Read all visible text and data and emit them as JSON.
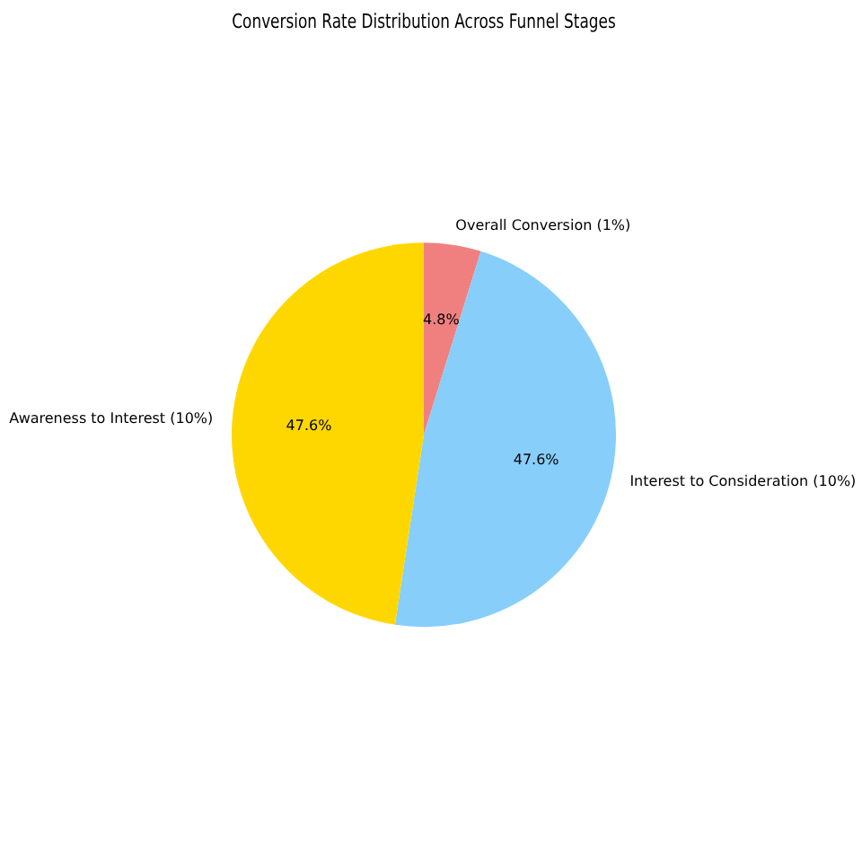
{
  "chart_data": {
    "type": "pie",
    "title": "Conversion Rate Distribution Across Funnel Stages",
    "categories": [
      "Overall Conversion (1%)",
      "Interest to Consideration (10%)",
      "Awareness to Interest (10%)"
    ],
    "values": [
      4.8,
      47.6,
      47.6
    ],
    "value_labels": [
      "4.8%",
      "47.6%",
      "47.6%"
    ],
    "colors": [
      "#f08080",
      "#87cefa",
      "#ffd700"
    ],
    "legend": false
  }
}
